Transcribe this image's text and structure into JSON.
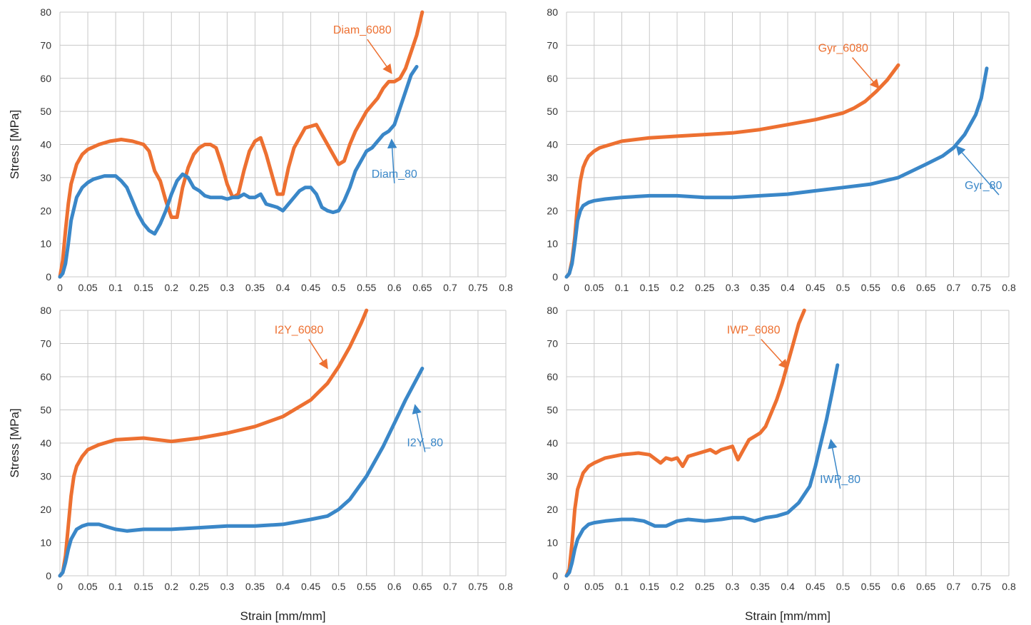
{
  "colors": {
    "orange": "#ED7031",
    "blue": "#3A87C8",
    "grid": "#C8C8C8"
  },
  "chart_data": [
    {
      "type": "line",
      "xlabel": "",
      "ylabel": "Stress [MPa]",
      "xlim": [
        0,
        0.8
      ],
      "ylim": [
        0,
        80
      ],
      "xticks": [
        "0",
        "0.05",
        "0.1",
        "0.15",
        "0.2",
        "0.25",
        "0.3",
        "0.35",
        "0.4",
        "0.45",
        "0.5",
        "0.55",
        "0.6",
        "0.65",
        "0.7",
        "0.75",
        "0.8"
      ],
      "yticks": [
        "0",
        "10",
        "20",
        "30",
        "40",
        "50",
        "60",
        "70",
        "80"
      ],
      "grid": true,
      "series": [
        {
          "name": "Diam_6080",
          "color": "#ED7031",
          "x": [
            0,
            0.005,
            0.01,
            0.015,
            0.02,
            0.03,
            0.04,
            0.05,
            0.07,
            0.09,
            0.11,
            0.13,
            0.15,
            0.16,
            0.17,
            0.18,
            0.19,
            0.2,
            0.21,
            0.22,
            0.23,
            0.24,
            0.25,
            0.26,
            0.27,
            0.28,
            0.29,
            0.3,
            0.31,
            0.32,
            0.33,
            0.34,
            0.35,
            0.36,
            0.37,
            0.38,
            0.39,
            0.4,
            0.41,
            0.42,
            0.43,
            0.44,
            0.45,
            0.46,
            0.47,
            0.48,
            0.49,
            0.5,
            0.51,
            0.52,
            0.53,
            0.54,
            0.55,
            0.56,
            0.57,
            0.58,
            0.59,
            0.6,
            0.61,
            0.62,
            0.63,
            0.64,
            0.65
          ],
          "y": [
            0,
            5,
            14,
            22,
            28,
            34,
            37,
            38.5,
            40,
            41,
            41.5,
            41,
            40,
            38,
            32,
            29,
            23,
            18,
            18,
            27,
            33,
            37,
            39,
            40,
            40,
            39,
            34,
            28,
            24,
            25,
            32,
            38,
            41,
            42,
            37,
            31,
            25,
            25,
            33,
            39,
            42,
            45,
            45.5,
            46,
            43,
            40,
            37,
            34,
            35,
            40,
            44,
            47,
            50,
            52,
            54,
            57,
            59,
            59,
            60,
            63,
            68,
            73,
            80
          ]
        },
        {
          "name": "Diam_80",
          "color": "#3A87C8",
          "x": [
            0,
            0.005,
            0.01,
            0.015,
            0.02,
            0.03,
            0.04,
            0.05,
            0.06,
            0.08,
            0.1,
            0.11,
            0.12,
            0.13,
            0.14,
            0.15,
            0.16,
            0.17,
            0.18,
            0.19,
            0.2,
            0.21,
            0.22,
            0.23,
            0.24,
            0.25,
            0.26,
            0.27,
            0.28,
            0.29,
            0.3,
            0.31,
            0.32,
            0.33,
            0.34,
            0.35,
            0.36,
            0.37,
            0.38,
            0.39,
            0.4,
            0.41,
            0.42,
            0.43,
            0.44,
            0.45,
            0.46,
            0.47,
            0.48,
            0.49,
            0.5,
            0.51,
            0.52,
            0.53,
            0.54,
            0.55,
            0.56,
            0.57,
            0.58,
            0.59,
            0.6,
            0.61,
            0.62,
            0.63,
            0.64
          ],
          "y": [
            0,
            1,
            4,
            10,
            17,
            24,
            27,
            28.5,
            29.5,
            30.5,
            30.5,
            29,
            27,
            23,
            19,
            16,
            14,
            13,
            16,
            20,
            25,
            29,
            31,
            30,
            27,
            26,
            24.5,
            24,
            24,
            24,
            23.5,
            24,
            24,
            25,
            24,
            24,
            25,
            22,
            21.5,
            21,
            20,
            22,
            24,
            26,
            27,
            27,
            25,
            21,
            20,
            19.5,
            20,
            23,
            27,
            32,
            35,
            38,
            39,
            41,
            43,
            44,
            46,
            51,
            56,
            61,
            63.5
          ]
        }
      ],
      "annotations": [
        {
          "text": "Diam_6080",
          "color": "#ED7031",
          "x": 0.49,
          "y": 73.5,
          "ax": 0.595,
          "ay": 61.5,
          "anchor": "start"
        },
        {
          "text": "Diam_80",
          "color": "#3A87C8",
          "x": 0.6,
          "y": 30,
          "ax": 0.595,
          "ay": 41.5,
          "anchor": "middle"
        }
      ]
    },
    {
      "type": "line",
      "xlabel": "",
      "ylabel": "",
      "xlim": [
        0,
        0.8
      ],
      "ylim": [
        0,
        80
      ],
      "xticks": [
        "0",
        "0.05",
        "0.1",
        "0.15",
        "0.2",
        "0.25",
        "0.3",
        "0.35",
        "0.4",
        "0.45",
        "0.5",
        "0.55",
        "0.6",
        "0.65",
        "0.7",
        "0.75",
        "0.8"
      ],
      "yticks": [
        "0",
        "10",
        "20",
        "30",
        "40",
        "50",
        "60",
        "70",
        "80"
      ],
      "grid": true,
      "series": [
        {
          "name": "Gyr_6080",
          "color": "#ED7031",
          "x": [
            0,
            0.005,
            0.01,
            0.015,
            0.02,
            0.025,
            0.03,
            0.035,
            0.04,
            0.05,
            0.06,
            0.08,
            0.1,
            0.15,
            0.2,
            0.25,
            0.3,
            0.35,
            0.4,
            0.45,
            0.5,
            0.52,
            0.54,
            0.56,
            0.58,
            0.6
          ],
          "y": [
            0,
            1,
            5,
            12,
            22,
            29,
            33,
            35,
            36.5,
            38,
            39,
            40,
            41,
            42,
            42.5,
            43,
            43.5,
            44.5,
            46,
            47.5,
            49.5,
            51,
            53,
            56,
            59.5,
            64
          ]
        },
        {
          "name": "Gyr_80",
          "color": "#3A87C8",
          "x": [
            0,
            0.005,
            0.01,
            0.015,
            0.02,
            0.025,
            0.03,
            0.04,
            0.05,
            0.07,
            0.1,
            0.15,
            0.2,
            0.25,
            0.3,
            0.35,
            0.4,
            0.45,
            0.5,
            0.55,
            0.6,
            0.65,
            0.68,
            0.7,
            0.72,
            0.74,
            0.75,
            0.76
          ],
          "y": [
            0,
            1,
            4,
            10,
            17,
            20,
            21.5,
            22.5,
            23,
            23.5,
            24,
            24.5,
            24.5,
            24,
            24,
            24.5,
            25,
            26,
            27,
            28,
            30,
            34,
            36.5,
            39,
            43,
            49,
            54,
            63
          ]
        }
      ],
      "annotations": [
        {
          "text": "Gyr_6080",
          "color": "#ED7031",
          "x": 0.455,
          "y": 68,
          "ax": 0.565,
          "ay": 57,
          "anchor": "start"
        },
        {
          "text": "Gyr_80",
          "color": "#3A87C8",
          "x": 0.72,
          "y": 26.5,
          "ax": 0.705,
          "ay": 39.5,
          "anchor": "start"
        }
      ]
    },
    {
      "type": "line",
      "xlabel": "Strain [mm/mm]",
      "ylabel": "Stress [MPa]",
      "xlim": [
        0,
        0.8
      ],
      "ylim": [
        0,
        80
      ],
      "xticks": [
        "0",
        "0.05",
        "0.1",
        "0.15",
        "0.2",
        "0.25",
        "0.3",
        "0.35",
        "0.4",
        "0.45",
        "0.5",
        "0.55",
        "0.6",
        "0.65",
        "0.7",
        "0.75",
        "0.8"
      ],
      "yticks": [
        "0",
        "10",
        "20",
        "30",
        "40",
        "50",
        "60",
        "70",
        "80"
      ],
      "grid": true,
      "series": [
        {
          "name": "I2Y_6080",
          "color": "#ED7031",
          "x": [
            0,
            0.005,
            0.01,
            0.015,
            0.02,
            0.025,
            0.03,
            0.04,
            0.05,
            0.07,
            0.1,
            0.15,
            0.2,
            0.25,
            0.3,
            0.35,
            0.4,
            0.45,
            0.48,
            0.5,
            0.52,
            0.54,
            0.55
          ],
          "y": [
            0,
            1,
            6,
            15,
            24,
            30,
            33,
            36,
            38,
            39.5,
            41,
            41.5,
            40.5,
            41.5,
            43,
            45,
            48,
            53,
            58,
            63,
            69,
            76,
            80
          ]
        },
        {
          "name": "I2Y_80",
          "color": "#3A87C8",
          "x": [
            0,
            0.005,
            0.01,
            0.015,
            0.02,
            0.03,
            0.04,
            0.05,
            0.06,
            0.07,
            0.08,
            0.09,
            0.1,
            0.12,
            0.15,
            0.2,
            0.25,
            0.3,
            0.35,
            0.4,
            0.45,
            0.48,
            0.5,
            0.52,
            0.55,
            0.58,
            0.6,
            0.62,
            0.65
          ],
          "y": [
            0,
            1,
            4,
            8,
            11,
            14,
            15,
            15.5,
            15.5,
            15.5,
            15,
            14.5,
            14,
            13.5,
            14,
            14,
            14.5,
            15,
            15,
            15.5,
            17,
            18,
            20,
            23,
            30,
            39,
            46,
            53,
            62.5
          ]
        }
      ],
      "annotations": [
        {
          "text": "I2Y_6080",
          "color": "#ED7031",
          "x": 0.385,
          "y": 73,
          "ax": 0.48,
          "ay": 62.5,
          "anchor": "start"
        },
        {
          "text": "I2Y_80",
          "color": "#3A87C8",
          "x": 0.655,
          "y": 39,
          "ax": 0.637,
          "ay": 51.5,
          "anchor": "middle"
        }
      ]
    },
    {
      "type": "line",
      "xlabel": "Strain [mm/mm]",
      "ylabel": "",
      "xlim": [
        0,
        0.8
      ],
      "ylim": [
        0,
        80
      ],
      "xticks": [
        "0",
        "0.05",
        "0.1",
        "0.15",
        "0.2",
        "0.25",
        "0.3",
        "0.35",
        "0.4",
        "0.45",
        "0.5",
        "0.55",
        "0.6",
        "0.65",
        "0.7",
        "0.75",
        "0.8"
      ],
      "yticks": [
        "0",
        "10",
        "20",
        "30",
        "40",
        "50",
        "60",
        "70",
        "80"
      ],
      "grid": true,
      "series": [
        {
          "name": "IWP_6080",
          "color": "#ED7031",
          "x": [
            0,
            0.005,
            0.01,
            0.015,
            0.02,
            0.03,
            0.04,
            0.05,
            0.07,
            0.1,
            0.13,
            0.15,
            0.17,
            0.18,
            0.19,
            0.2,
            0.21,
            0.22,
            0.24,
            0.26,
            0.27,
            0.28,
            0.29,
            0.3,
            0.31,
            0.32,
            0.33,
            0.34,
            0.35,
            0.36,
            0.37,
            0.38,
            0.39,
            0.4,
            0.41,
            0.42,
            0.43
          ],
          "y": [
            0,
            2,
            10,
            20,
            26,
            31,
            33,
            34,
            35.5,
            36.5,
            37,
            36.5,
            34,
            35.5,
            35,
            35.5,
            33,
            36,
            37,
            38,
            37,
            38,
            38.5,
            39,
            35,
            38,
            41,
            42,
            43,
            45,
            49,
            53,
            58,
            64,
            70,
            76,
            80
          ]
        },
        {
          "name": "IWP_80",
          "color": "#3A87C8",
          "x": [
            0,
            0.005,
            0.01,
            0.015,
            0.02,
            0.03,
            0.04,
            0.05,
            0.07,
            0.1,
            0.12,
            0.14,
            0.16,
            0.18,
            0.2,
            0.22,
            0.25,
            0.28,
            0.3,
            0.32,
            0.34,
            0.36,
            0.38,
            0.4,
            0.42,
            0.44,
            0.45,
            0.46,
            0.47,
            0.48,
            0.49
          ],
          "y": [
            0,
            1,
            4,
            8,
            11,
            14,
            15.5,
            16,
            16.5,
            17,
            17,
            16.5,
            15,
            15,
            16.5,
            17,
            16.5,
            17,
            17.5,
            17.5,
            16.5,
            17.5,
            18,
            19,
            22,
            27,
            33,
            40,
            47,
            55,
            63.5
          ]
        }
      ],
      "annotations": [
        {
          "text": "IWP_6080",
          "color": "#ED7031",
          "x": 0.29,
          "y": 73,
          "ax": 0.4,
          "ay": 62.5,
          "anchor": "start"
        },
        {
          "text": "IWP_80",
          "color": "#3A87C8",
          "x": 0.495,
          "y": 28,
          "ax": 0.478,
          "ay": 41,
          "anchor": "middle"
        }
      ]
    }
  ]
}
